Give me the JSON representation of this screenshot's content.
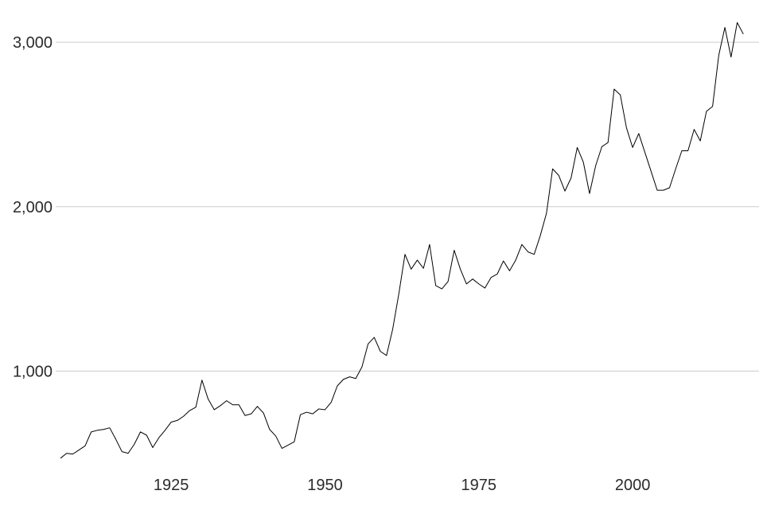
{
  "chart_data": {
    "type": "line",
    "title": "",
    "xlabel": "",
    "ylabel": "",
    "grid": "horizontal",
    "legend": "none",
    "xlim": [
      1907,
      2019
    ],
    "ylim": [
      460,
      3170
    ],
    "x_ticks": [
      1925,
      1950,
      1975,
      2000
    ],
    "x_tick_labels": [
      "1925",
      "1950",
      "1975",
      "2000"
    ],
    "y_ticks": [
      1000,
      2000,
      3000
    ],
    "y_tick_labels": [
      "1,000",
      "2,000",
      "3,000"
    ],
    "line_color": "#000000",
    "grid_color": "#cccccc",
    "series": [
      {
        "x": [
          1907,
          1908,
          1909,
          1910,
          1911,
          1912,
          1913,
          1914,
          1915,
          1916,
          1917,
          1918,
          1919,
          1920,
          1921,
          1922,
          1923,
          1924,
          1925,
          1926,
          1927,
          1928,
          1929,
          1930,
          1931,
          1932,
          1933,
          1934,
          1935,
          1936,
          1937,
          1938,
          1939,
          1940,
          1941,
          1942,
          1943,
          1944,
          1945,
          1946,
          1947,
          1948,
          1949,
          1950,
          1951,
          1952,
          1953,
          1954,
          1955,
          1956,
          1957,
          1958,
          1959,
          1960,
          1961,
          1962,
          1963,
          1964,
          1965,
          1966,
          1967,
          1968,
          1969,
          1970,
          1971,
          1972,
          1973,
          1974,
          1975,
          1976,
          1977,
          1978,
          1979,
          1980,
          1981,
          1982,
          1983,
          1984,
          1985,
          1986,
          1987,
          1988,
          1989,
          1990,
          1991,
          1992,
          1993,
          1994,
          1995,
          1996,
          1997,
          1998,
          1999,
          2000,
          2001,
          2002,
          2003,
          2004,
          2005,
          2006,
          2007,
          2008,
          2009,
          2010,
          2011,
          2012,
          2013,
          2014,
          2015,
          2016,
          2017,
          2018
        ],
        "values": [
          470,
          500,
          495,
          520,
          545,
          630,
          640,
          645,
          655,
          585,
          510,
          500,
          555,
          630,
          610,
          535,
          595,
          640,
          690,
          700,
          725,
          760,
          780,
          945,
          830,
          765,
          790,
          820,
          795,
          795,
          730,
          740,
          785,
          745,
          645,
          605,
          530,
          550,
          570,
          735,
          750,
          740,
          770,
          765,
          810,
          910,
          950,
          965,
          955,
          1025,
          1165,
          1205,
          1120,
          1095,
          1255,
          1470,
          1710,
          1620,
          1675,
          1625,
          1770,
          1520,
          1500,
          1545,
          1735,
          1620,
          1530,
          1560,
          1530,
          1505,
          1570,
          1590,
          1670,
          1610,
          1675,
          1770,
          1725,
          1710,
          1825,
          1960,
          2230,
          2190,
          2095,
          2175,
          2360,
          2270,
          2080,
          2250,
          2365,
          2390,
          2715,
          2680,
          2480,
          2360,
          2445,
          2330,
          2215,
          2100,
          2100,
          2115,
          2230,
          2340,
          2340,
          2470,
          2400,
          2580,
          2610,
          2920,
          3090,
          2910,
          3120,
          3050
        ]
      }
    ]
  }
}
